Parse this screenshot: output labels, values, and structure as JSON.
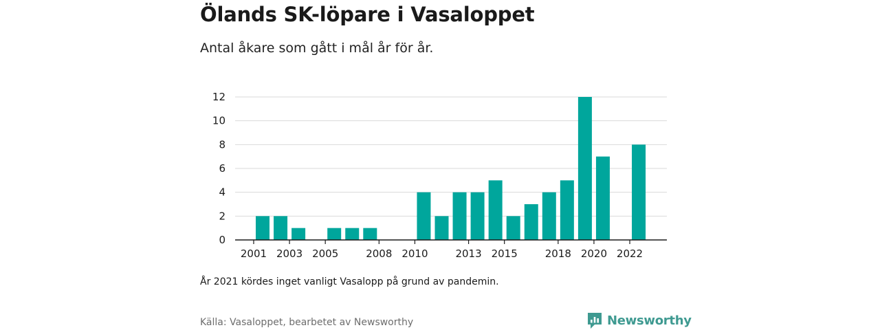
{
  "title": "Ölands SK-löpare i Vasaloppet",
  "subtitle": "Antal åkare som gått i mål år för år.",
  "note": "År 2021 kördes inget vanligt Vasalopp på grund av pandemin.",
  "source": "Källa: Vasaloppet, bearbetet av Newsworthy",
  "brand": {
    "name": "Newsworthy",
    "icon": "newsworthy-logo-icon",
    "color": "#3f9a91"
  },
  "chart_data": {
    "type": "bar",
    "categories": [
      "2001",
      "2002",
      "2003",
      "2004",
      "2005",
      "2006",
      "2007",
      "2008",
      "2009",
      "2010",
      "2011",
      "2012",
      "2013",
      "2014",
      "2015",
      "2016",
      "2017",
      "2018",
      "2019",
      "2020",
      "2021",
      "2022"
    ],
    "values": [
      2,
      2,
      1,
      0,
      1,
      1,
      1,
      0,
      0,
      4,
      2,
      4,
      4,
      5,
      2,
      3,
      4,
      5,
      12,
      7,
      0,
      8
    ],
    "x_tick_labels": [
      "2001",
      "2003",
      "2005",
      "2008",
      "2010",
      "2013",
      "2015",
      "2018",
      "2020",
      "2022"
    ],
    "y_ticks": [
      0,
      2,
      4,
      6,
      8,
      10,
      12
    ],
    "ylim": [
      0,
      12
    ],
    "grid": true,
    "bar_color": "#00a69c",
    "xlabel": "",
    "ylabel": ""
  }
}
